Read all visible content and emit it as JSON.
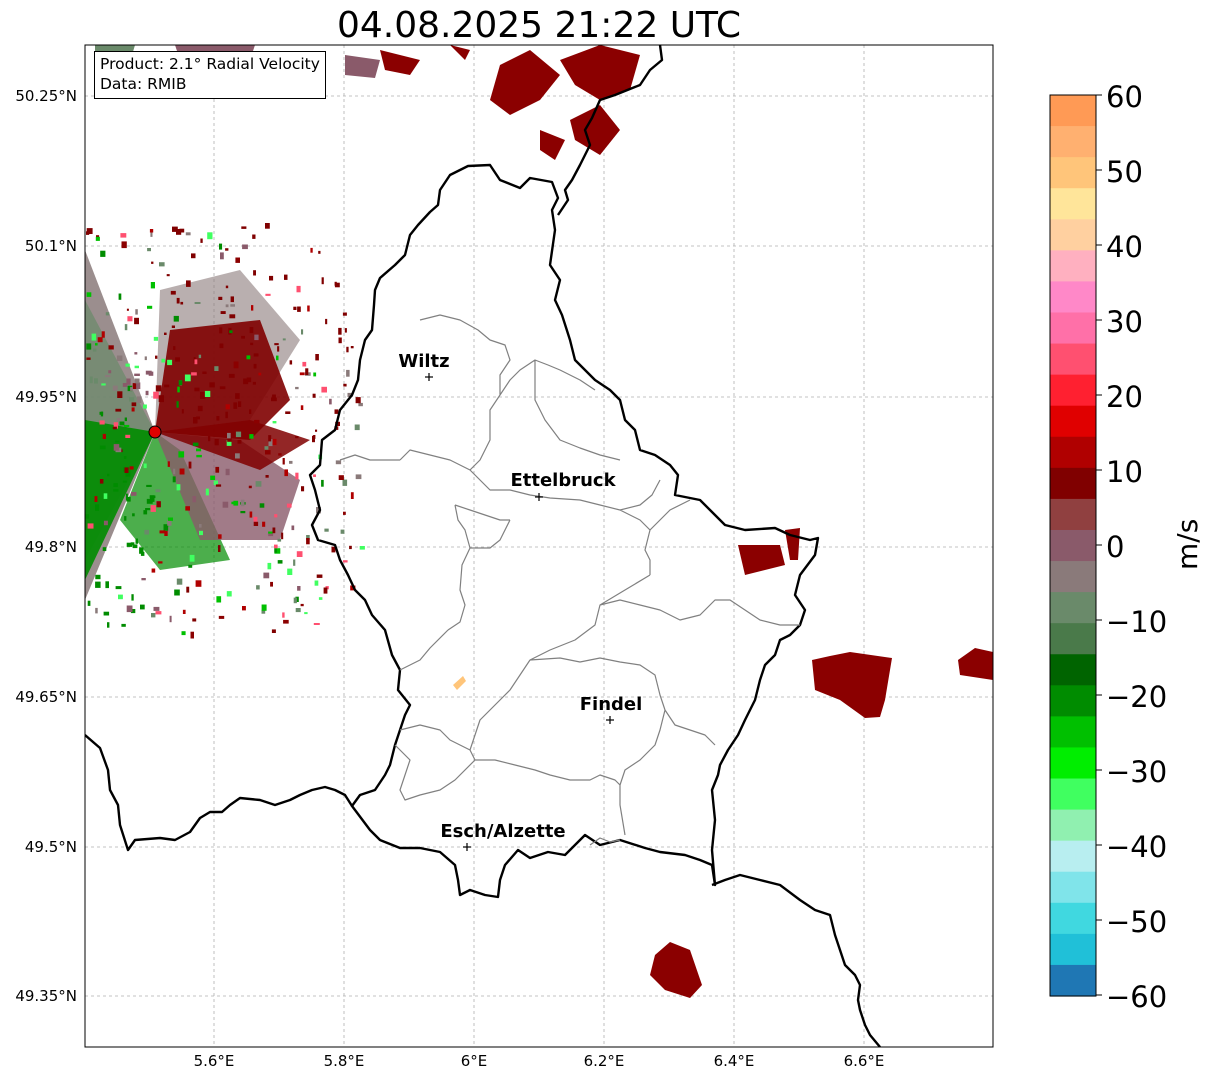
{
  "title": "04.08.2025 21:22 UTC",
  "info": {
    "product": "Product: 2.1° Radial Velocity",
    "data": "Data: RMIB"
  },
  "lat_labels": [
    "50.25°N",
    "50.1°N",
    "49.95°N",
    "49.8°N",
    "49.65°N",
    "49.5°N",
    "49.35°N"
  ],
  "lon_labels": [
    "5.6°E",
    "5.8°E",
    "6°E",
    "6.2°E",
    "6.4°E",
    "6.6°E"
  ],
  "cities": [
    {
      "name": "Wiltz"
    },
    {
      "name": "Ettelbruck"
    },
    {
      "name": "Findel"
    },
    {
      "name": "Esch/Alzette"
    }
  ],
  "colorbar": {
    "unit": "m/s",
    "tick_labels": [
      "60",
      "50",
      "40",
      "30",
      "20",
      "10",
      "0",
      "−10",
      "−20",
      "−30",
      "−40",
      "−50",
      "−60"
    ],
    "range": [
      -60,
      60
    ],
    "colors": [
      "#ff9a55",
      "#ffb070",
      "#ffc57a",
      "#ffe59a",
      "#ffd0a0",
      "#ffb0c0",
      "#ff88c8",
      "#ff70a8",
      "#ff5070",
      "#ff2030",
      "#e00000",
      "#b00000",
      "#800000",
      "#904040",
      "#8a5a6a",
      "#8a7a7a",
      "#6a8a6a",
      "#4a7a4a",
      "#006400",
      "#008c00",
      "#00c000",
      "#00ee00",
      "#40ff60",
      "#90f0b0",
      "#b8eef0",
      "#80e4ea",
      "#40d8e0",
      "#20c0d8",
      "#1f77b4"
    ]
  },
  "radar_site": {
    "color": "#e00000"
  }
}
